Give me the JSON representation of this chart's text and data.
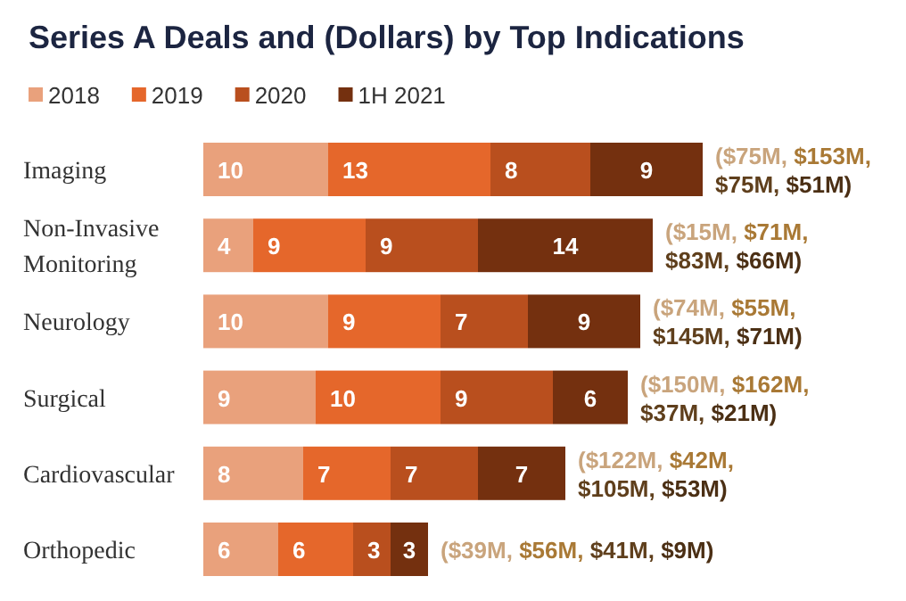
{
  "chart_data": {
    "type": "bar",
    "orientation": "horizontal",
    "stacked": true,
    "title": "Series A Deals and (Dollars) by Top Indications",
    "categories": [
      "Imaging",
      "Non-Invasive Monitoring",
      "Neurology",
      "Surgical",
      "Cardiovascular",
      "Orthopedic"
    ],
    "series": [
      {
        "name": "2018",
        "color": "#e9a17c",
        "values": [
          10,
          4,
          10,
          9,
          8,
          6
        ]
      },
      {
        "name": "2019",
        "color": "#e5672b",
        "values": [
          13,
          9,
          9,
          10,
          7,
          6
        ]
      },
      {
        "name": "2020",
        "color": "#b94f1e",
        "values": [
          8,
          9,
          7,
          9,
          7,
          3
        ]
      },
      {
        "name": "1H 2021",
        "color": "#74300f",
        "values": [
          9,
          14,
          9,
          6,
          7,
          3
        ]
      }
    ],
    "data_labels": true,
    "legend": "top left",
    "grid": false,
    "annotations": [
      "($75M, $153M, $75M, $51M)",
      "($15M, $71M, $83M, $66M)",
      "($74M, $55M, $145M, $71M)",
      "($150M, $162M, $37M, $21M)",
      "($122M, $42M, $105M, $53M)",
      "($39M, $56M, $41M, $9M)"
    ]
  }
}
